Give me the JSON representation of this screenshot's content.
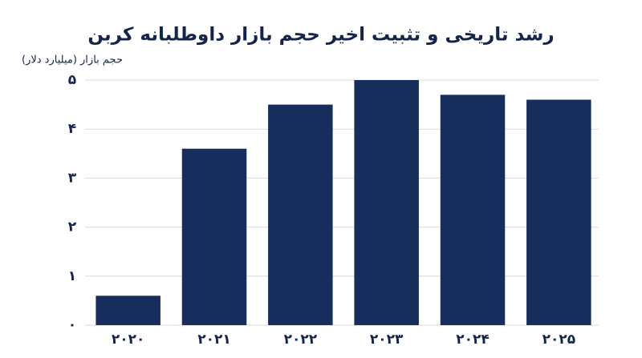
{
  "chart_data": {
    "type": "bar",
    "title": "رشد تاریخی و تثبیت اخیر حجم بازار داوطلبانه کربن",
    "y_label": "حجم بازار (میلیارد دلار)",
    "categories": [
      "۲۰۲۰",
      "۲۰۲۱",
      "۲۰۲۲",
      "۲۰۲۳",
      "۲۰۲۴",
      "۲۰۲۵"
    ],
    "values": [
      0.6,
      3.6,
      4.5,
      5.0,
      4.7,
      4.6
    ],
    "color": "#172d5c",
    "ylim": [
      0,
      5
    ],
    "yticks": [
      {
        "value": 0,
        "label": "۰"
      },
      {
        "value": 1,
        "label": "۱"
      },
      {
        "value": 2,
        "label": "۲"
      },
      {
        "value": 3,
        "label": "۳"
      },
      {
        "value": 4,
        "label": "۴"
      },
      {
        "value": 5,
        "label": "۵"
      }
    ],
    "grid": true
  }
}
